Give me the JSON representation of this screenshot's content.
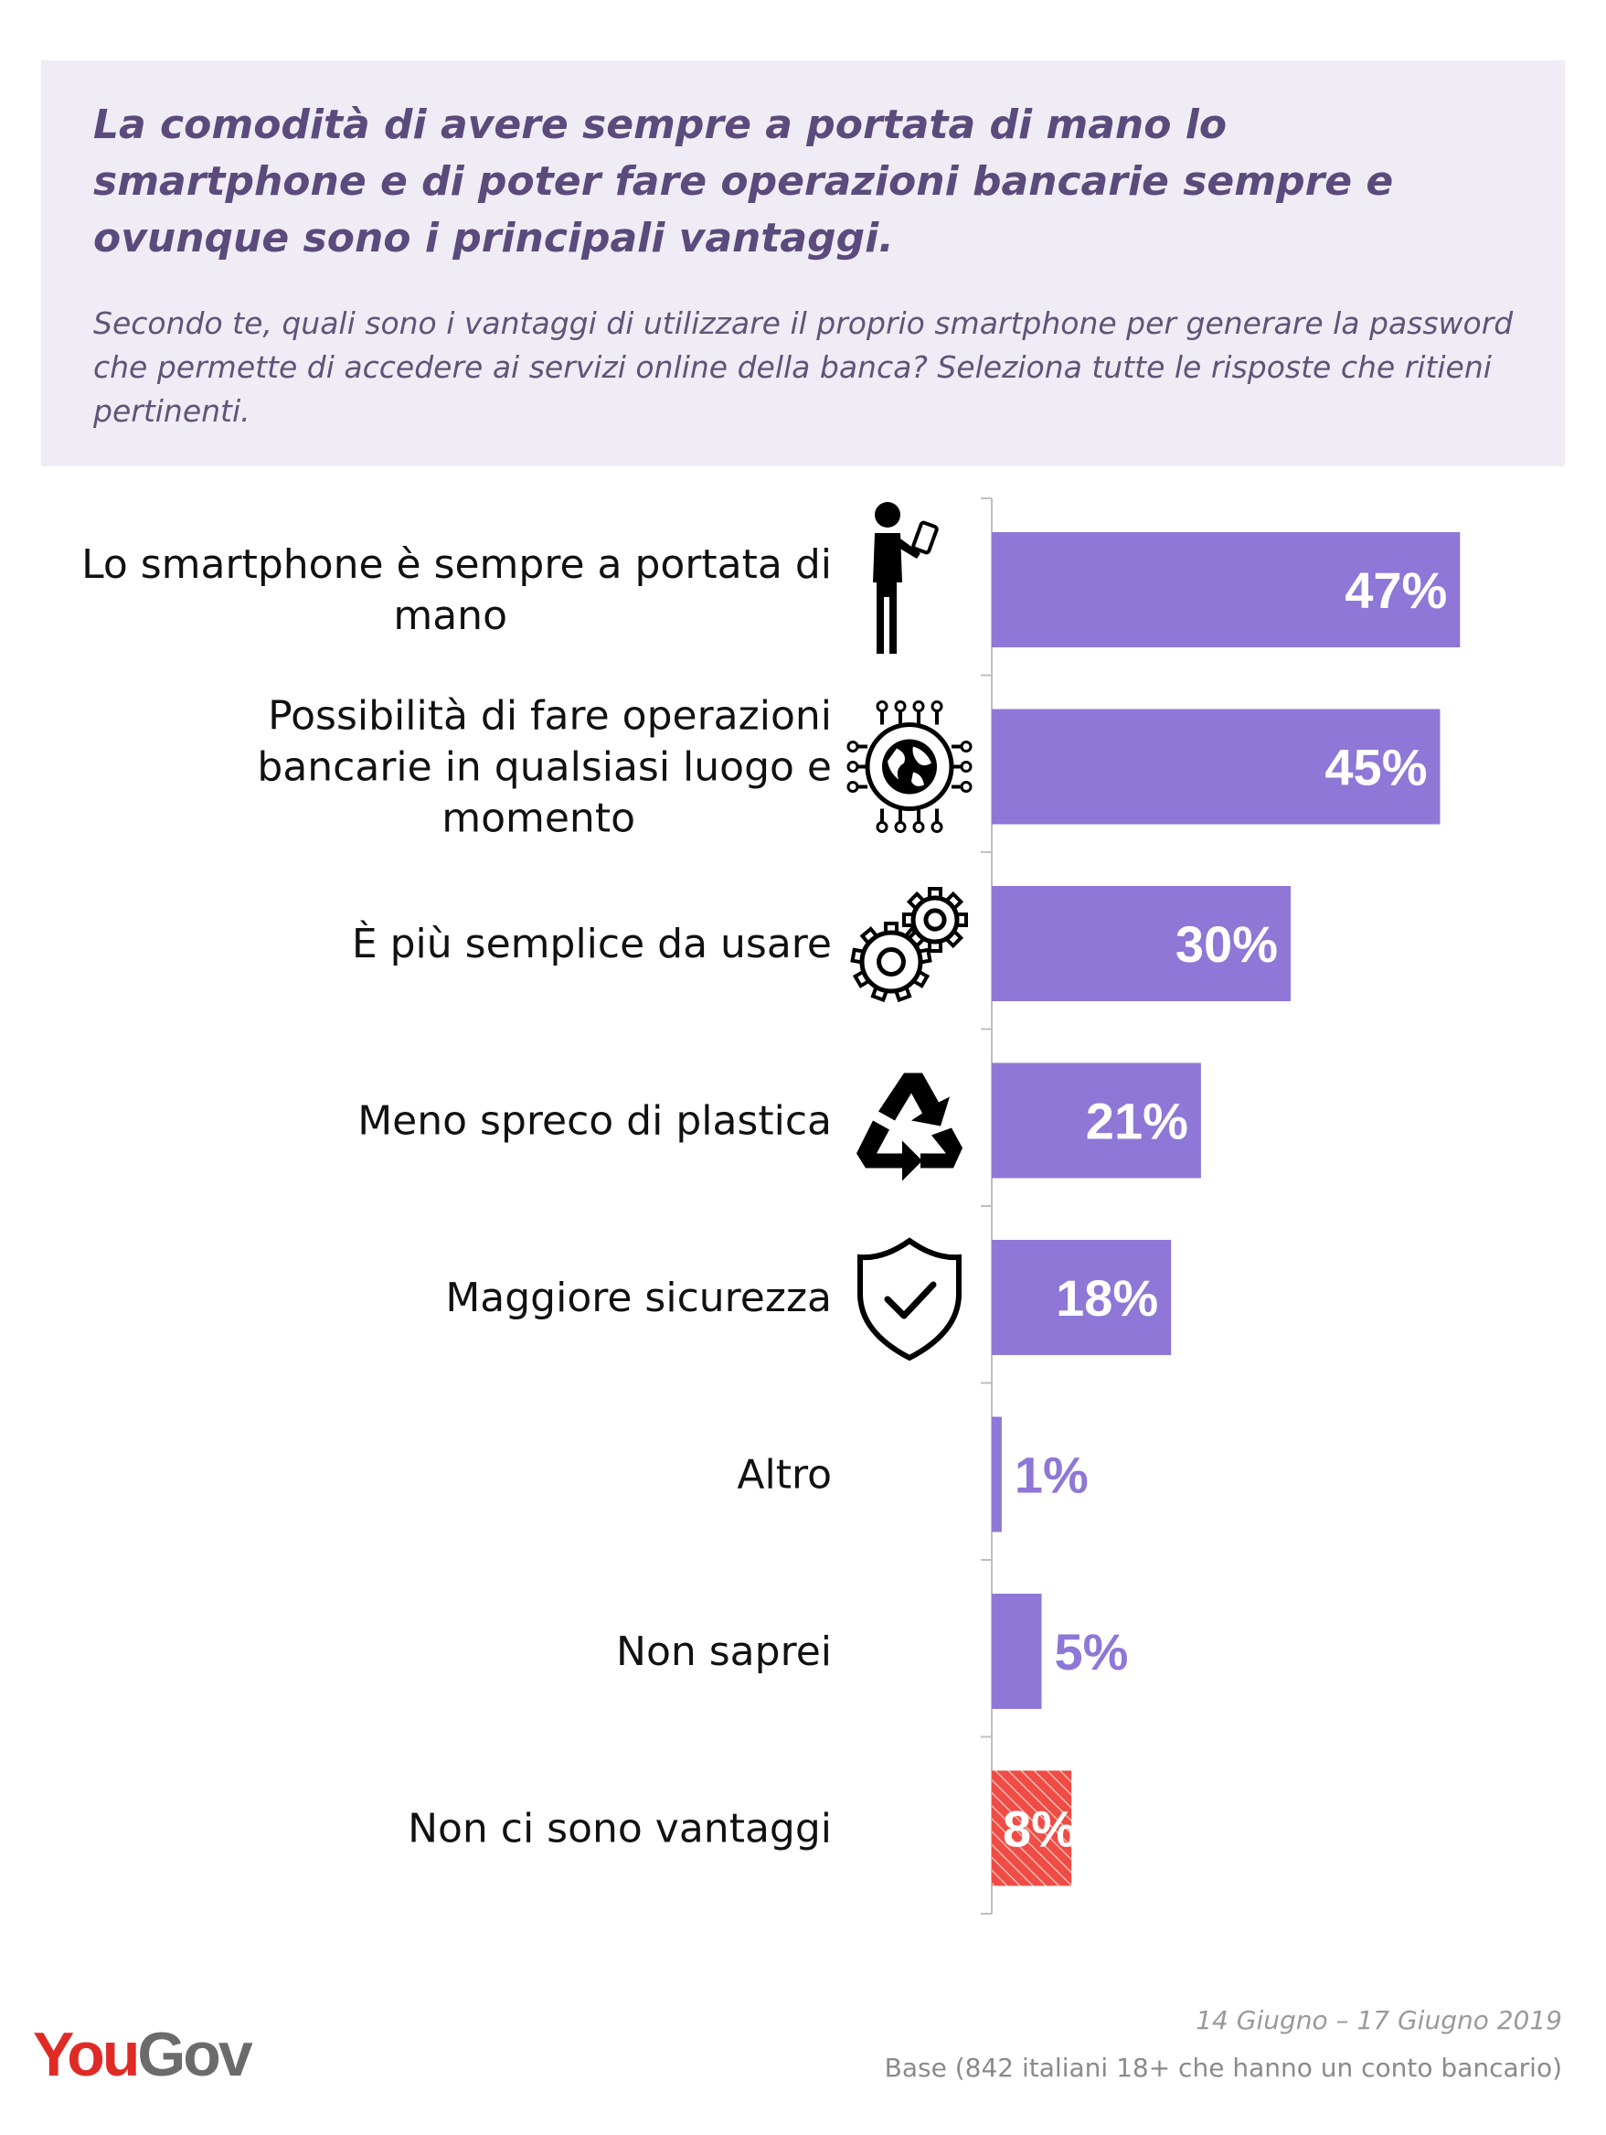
{
  "header": {
    "title": "La comodità di avere sempre a portata di mano lo smartphone e di poter fare operazioni bancarie sempre e ovunque sono i principali vantaggi.",
    "question": "Secondo te, quali sono i vantaggi di utilizzare il proprio smartphone per generare la password che permette di accedere ai servizi online della banca? Seleziona tutte le risposte che ritieni pertinenti."
  },
  "chart_data": {
    "type": "bar",
    "orientation": "horizontal",
    "categories": [
      [
        "Lo smartphone è sempre a portata di",
        "mano"
      ],
      [
        "Possibilità di fare operazioni",
        "bancarie in qualsiasi luogo e",
        "momento"
      ],
      [
        "È più semplice da usare"
      ],
      [
        "Meno spreco di plastica"
      ],
      [
        "Maggiore sicurezza"
      ],
      [
        "Altro"
      ],
      [
        "Non saprei"
      ],
      [
        "Non ci sono vantaggi"
      ]
    ],
    "values": [
      47,
      45,
      30,
      21,
      18,
      1,
      5,
      8
    ],
    "value_labels": [
      "47%",
      "45%",
      "30%",
      "21%",
      "18%",
      "1%",
      "5%",
      "8%"
    ],
    "icons": [
      "person-smartphone-icon",
      "globe-circuit-icon",
      "gears-icon",
      "recycle-icon",
      "shield-check-icon",
      "",
      "",
      ""
    ],
    "xlim": [
      0,
      50
    ],
    "grid": false,
    "colors": {
      "bar": "#8e77d6",
      "highlight": "#ee4c44",
      "label_inside": "#ffffff",
      "label_outside": "#8e77d6"
    },
    "highlight_index": 7
  },
  "footer": {
    "date": "14 Giugno – 17 Giugno 2019",
    "base": "Base (842 italiani 18+ che hanno un conto bancario)",
    "logo_you": "You",
    "logo_gov": "Gov"
  }
}
